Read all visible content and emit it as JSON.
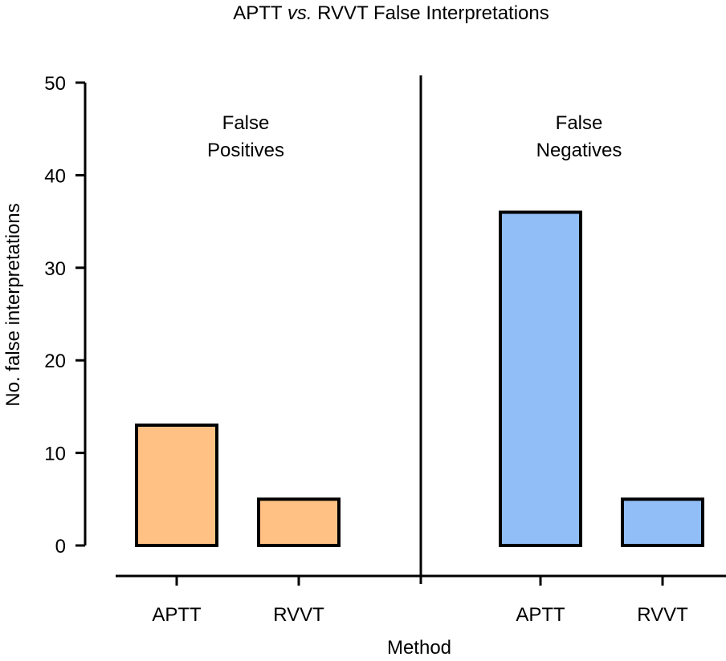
{
  "chart_data": {
    "type": "bar",
    "title": {
      "before": "APTT ",
      "italic": "vs.",
      "after": " RVVT False Interpretations"
    },
    "xlabel": "Method",
    "ylabel": "No. false interpretations",
    "ylim": [
      0,
      50
    ],
    "yticks": [
      0,
      10,
      20,
      30,
      40,
      50
    ],
    "grid": false,
    "legend": "none",
    "panels": [
      {
        "label_lines": [
          "False",
          "Positives"
        ],
        "color": "#ffc184",
        "categories": [
          "APTT",
          "RVVT"
        ],
        "values": [
          13,
          5
        ]
      },
      {
        "label_lines": [
          "False",
          "Negatives"
        ],
        "color": "#91bef7",
        "categories": [
          "APTT",
          "RVVT"
        ],
        "values": [
          36,
          5
        ]
      }
    ]
  }
}
